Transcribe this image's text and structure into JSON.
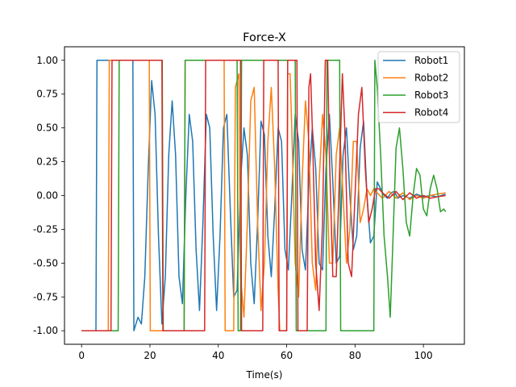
{
  "chart_data": {
    "type": "line",
    "title": "Force-X",
    "xlabel": "Time(s)",
    "ylabel": "",
    "xlim": [
      -5,
      112
    ],
    "ylim": [
      -1.1,
      1.1
    ],
    "x_ticks": [
      "0",
      "20",
      "40",
      "60",
      "80",
      "100"
    ],
    "y_ticks": [
      "-1.00",
      "-0.75",
      "-0.50",
      "-0.25",
      "0.00",
      "0.25",
      "0.50",
      "0.75",
      "1.00"
    ],
    "legend_position": "top-right",
    "grid": false,
    "series": [
      {
        "name": "Robot1",
        "color": "#1f77b4",
        "points": [
          [
            0,
            -1
          ],
          [
            4.2,
            -1
          ],
          [
            4.5,
            1
          ],
          [
            15,
            1
          ],
          [
            15.3,
            -1
          ],
          [
            16.5,
            -0.9
          ],
          [
            17.5,
            -0.95
          ],
          [
            18.5,
            -0.6
          ],
          [
            19.5,
            0.2
          ],
          [
            20.5,
            0.85
          ],
          [
            21.5,
            0.6
          ],
          [
            22.5,
            -0.3
          ],
          [
            23.5,
            -0.95
          ],
          [
            24.5,
            -0.6
          ],
          [
            25.5,
            0.3
          ],
          [
            26.5,
            0.7
          ],
          [
            27.5,
            0.3
          ],
          [
            28.5,
            -0.6
          ],
          [
            29.5,
            -0.8
          ],
          [
            30.5,
            0.0
          ],
          [
            31.5,
            0.6
          ],
          [
            32.5,
            0.4
          ],
          [
            33.5,
            -0.4
          ],
          [
            34.5,
            -0.85
          ],
          [
            35.5,
            -0.2
          ],
          [
            36.5,
            0.6
          ],
          [
            37.5,
            0.5
          ],
          [
            38.5,
            -0.3
          ],
          [
            39.5,
            -0.85
          ],
          [
            40.5,
            -0.3
          ],
          [
            41.5,
            0.5
          ],
          [
            42.5,
            0.6
          ],
          [
            43.5,
            -0.1
          ],
          [
            44.5,
            -0.75
          ],
          [
            45.5,
            -0.7
          ],
          [
            46.5,
            0.1
          ],
          [
            47.5,
            0.5
          ],
          [
            48.5,
            0.3
          ],
          [
            49.5,
            -0.5
          ],
          [
            50.5,
            -0.8
          ],
          [
            51.5,
            -0.2
          ],
          [
            52.5,
            0.55
          ],
          [
            53.5,
            0.45
          ],
          [
            54.5,
            -0.3
          ],
          [
            55.5,
            -0.6
          ],
          [
            56.5,
            -0.1
          ],
          [
            57.5,
            0.5
          ],
          [
            58.5,
            0.4
          ],
          [
            59.5,
            -0.4
          ],
          [
            60.5,
            -0.55
          ],
          [
            61.5,
            0.0
          ],
          [
            62.5,
            0.6
          ],
          [
            63.5,
            0.4
          ],
          [
            64.5,
            -0.4
          ],
          [
            65.5,
            -0.55
          ],
          [
            66.5,
            0.1
          ],
          [
            67.5,
            0.5
          ],
          [
            68.5,
            0.2
          ],
          [
            69.5,
            -0.5
          ],
          [
            70.5,
            -0.55
          ],
          [
            71.5,
            0.2
          ],
          [
            72.5,
            0.6
          ],
          [
            73.5,
            0.1
          ],
          [
            74.5,
            -0.5
          ],
          [
            75.5,
            -0.45
          ],
          [
            76.5,
            0.3
          ],
          [
            77.5,
            0.5
          ],
          [
            78.5,
            0.0
          ],
          [
            79.5,
            -0.4
          ],
          [
            80.5,
            -0.3
          ],
          [
            81.5,
            0.35
          ],
          [
            82.5,
            0.55
          ],
          [
            83.5,
            0.0
          ],
          [
            84.5,
            -0.35
          ],
          [
            85.5,
            -0.3
          ],
          [
            86.5,
            0.1
          ],
          [
            87.5,
            0.05
          ],
          [
            88.5,
            0.0
          ],
          [
            89.5,
            -0.02
          ],
          [
            90.5,
            0.02
          ],
          [
            91.5,
            0.03
          ],
          [
            92.5,
            -0.02
          ],
          [
            94,
            0.0
          ],
          [
            96,
            -0.02
          ],
          [
            98,
            0.01
          ],
          [
            100,
            -0.01
          ],
          [
            102,
            0.0
          ],
          [
            104,
            -0.01
          ],
          [
            106.5,
            0.01
          ]
        ]
      },
      {
        "name": "Robot2",
        "color": "#ff7f0e",
        "points": [
          [
            0,
            -1
          ],
          [
            7.8,
            -1
          ],
          [
            8.1,
            1
          ],
          [
            19.8,
            1
          ],
          [
            20.1,
            -1
          ],
          [
            30,
            -1
          ],
          [
            30.3,
            1
          ],
          [
            41.7,
            1
          ],
          [
            42,
            -1
          ],
          [
            44.5,
            -1
          ],
          [
            45,
            0.8
          ],
          [
            46,
            0.9
          ],
          [
            46.5,
            -0.6
          ],
          [
            47.5,
            -0.9
          ],
          [
            48.5,
            -0.2
          ],
          [
            49.5,
            0.7
          ],
          [
            50.5,
            0.8
          ],
          [
            51.5,
            -0.2
          ],
          [
            52.5,
            -0.85
          ],
          [
            53.5,
            -0.5
          ],
          [
            54.5,
            0.4
          ],
          [
            55.5,
            0.8
          ],
          [
            56.5,
            0.2
          ],
          [
            57.5,
            -0.7
          ],
          [
            58,
            -1
          ],
          [
            60,
            -1
          ],
          [
            60.3,
            0.9
          ],
          [
            61,
            0.9
          ],
          [
            61.5,
            0.5
          ],
          [
            62.5,
            -0.5
          ],
          [
            63.5,
            -0.75
          ],
          [
            64.5,
            0.1
          ],
          [
            65.5,
            0.7
          ],
          [
            66.5,
            0.4
          ],
          [
            67.5,
            -0.5
          ],
          [
            68.5,
            -0.7
          ],
          [
            69.5,
            0.1
          ],
          [
            70.5,
            0.6
          ],
          [
            71.5,
            0.3
          ],
          [
            72.5,
            -0.5
          ],
          [
            73.5,
            -0.5
          ],
          [
            74.5,
            0.3
          ],
          [
            75.5,
            0.5
          ],
          [
            76.5,
            0.0
          ],
          [
            77.5,
            -0.5
          ],
          [
            78.5,
            -0.25
          ],
          [
            79.5,
            0.4
          ],
          [
            80.5,
            0.4
          ],
          [
            81.5,
            -0.2
          ],
          [
            82.5,
            -0.1
          ],
          [
            83.5,
            0.05
          ],
          [
            84.5,
            0.0
          ],
          [
            85.5,
            0.05
          ],
          [
            86.5,
            0.02
          ],
          [
            88,
            -0.02
          ],
          [
            90,
            0.03
          ],
          [
            92,
            -0.02
          ],
          [
            94,
            0.02
          ],
          [
            96,
            -0.03
          ],
          [
            98,
            0.0
          ],
          [
            100,
            -0.02
          ],
          [
            102,
            0.0
          ],
          [
            104,
            0.01
          ],
          [
            106.5,
            0.02
          ]
        ]
      },
      {
        "name": "Robot3",
        "color": "#2ca02c",
        "points": [
          [
            0,
            -1
          ],
          [
            10.7,
            -1
          ],
          [
            11,
            1
          ],
          [
            23.6,
            1
          ],
          [
            23.9,
            -1
          ],
          [
            30,
            -1
          ],
          [
            30.3,
            1
          ],
          [
            45.5,
            1
          ],
          [
            45.8,
            -1
          ],
          [
            46.5,
            -1
          ],
          [
            46.8,
            1
          ],
          [
            62.5,
            1
          ],
          [
            62.8,
            -1
          ],
          [
            71.5,
            -1
          ],
          [
            71.8,
            1
          ],
          [
            75.5,
            1
          ],
          [
            75.8,
            -1
          ],
          [
            85.5,
            -1
          ],
          [
            85.8,
            1
          ],
          [
            86.5,
            0.8
          ],
          [
            87.5,
            0.3
          ],
          [
            88.5,
            -0.3
          ],
          [
            89.5,
            -0.6
          ],
          [
            90.3,
            -0.9
          ],
          [
            91,
            -0.4
          ],
          [
            92,
            0.35
          ],
          [
            93,
            0.5
          ],
          [
            94,
            0.2
          ],
          [
            95,
            -0.2
          ],
          [
            96,
            -0.3
          ],
          [
            97,
            0.0
          ],
          [
            98,
            0.2
          ],
          [
            99,
            0.15
          ],
          [
            100,
            -0.1
          ],
          [
            101,
            -0.15
          ],
          [
            102,
            0.05
          ],
          [
            103,
            0.15
          ],
          [
            104,
            0.05
          ],
          [
            105,
            -0.12
          ],
          [
            106,
            -0.1
          ],
          [
            106.5,
            -0.12
          ]
        ]
      },
      {
        "name": "Robot4",
        "color": "#d62728",
        "points": [
          [
            0,
            -1
          ],
          [
            8.6,
            -1
          ],
          [
            8.9,
            1
          ],
          [
            23.5,
            1
          ],
          [
            23.8,
            -1
          ],
          [
            36,
            -1
          ],
          [
            36.3,
            1
          ],
          [
            46.5,
            1
          ],
          [
            46.8,
            -1
          ],
          [
            53,
            -1
          ],
          [
            53.3,
            1
          ],
          [
            57.5,
            1
          ],
          [
            57.8,
            -1
          ],
          [
            60,
            -1
          ],
          [
            60.3,
            1
          ],
          [
            63,
            1
          ],
          [
            63.3,
            -1
          ],
          [
            66,
            -1
          ],
          [
            66.5,
            0.8
          ],
          [
            67,
            0.9
          ],
          [
            67.5,
            0.5
          ],
          [
            68.5,
            -0.5
          ],
          [
            69.5,
            -0.85
          ],
          [
            70.5,
            -0.2
          ],
          [
            71.3,
            1
          ],
          [
            72,
            1
          ],
          [
            72.5,
            0.3
          ],
          [
            73.5,
            -0.6
          ],
          [
            74.5,
            -0.6
          ],
          [
            75.5,
            0.2
          ],
          [
            76.3,
            0.9
          ],
          [
            77,
            0.5
          ],
          [
            78,
            -0.5
          ],
          [
            79,
            -0.6
          ],
          [
            80,
            0.0
          ],
          [
            81,
            0.6
          ],
          [
            82,
            0.8
          ],
          [
            83,
            0.2
          ],
          [
            84,
            -0.2
          ],
          [
            85,
            -0.1
          ],
          [
            86,
            0.05
          ],
          [
            87,
            0.05
          ],
          [
            88,
            0.02
          ],
          [
            89,
            0.0
          ],
          [
            90,
            -0.02
          ],
          [
            92,
            0.03
          ],
          [
            94,
            -0.03
          ],
          [
            96,
            0.02
          ],
          [
            98,
            -0.02
          ],
          [
            100,
            0.0
          ],
          [
            102,
            -0.02
          ],
          [
            104,
            -0.01
          ],
          [
            106.5,
            0.0
          ]
        ]
      }
    ]
  }
}
